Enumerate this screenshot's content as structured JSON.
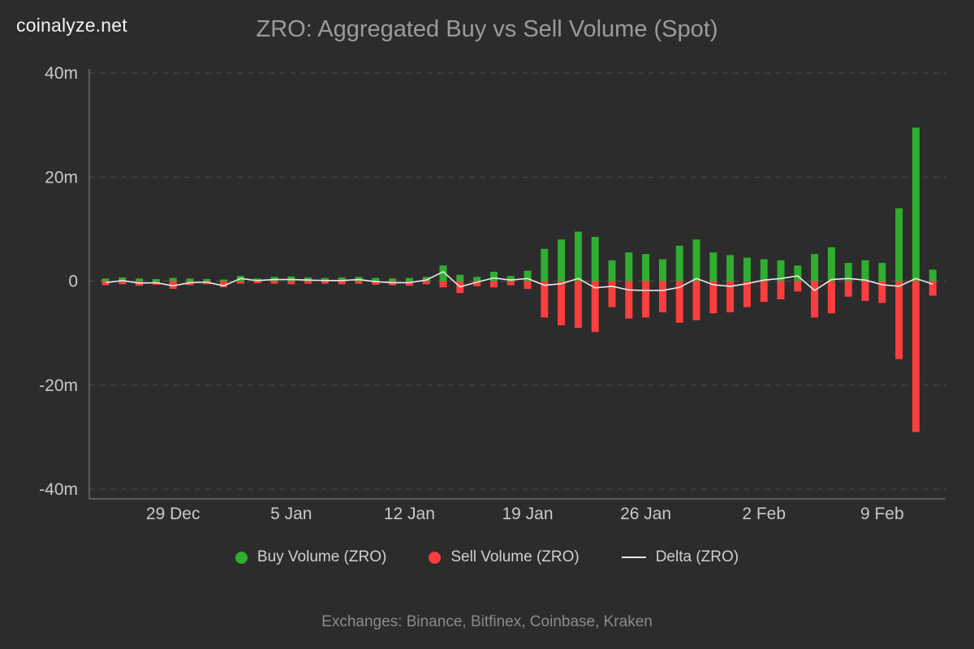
{
  "header": {
    "logo": "coinalyze.net",
    "title": "ZRO: Aggregated Buy vs Sell Volume (Spot)"
  },
  "legend": [
    {
      "label": "Buy Volume (ZRO)",
      "color": "#2fae2f",
      "type": "dot"
    },
    {
      "label": "Sell Volume (ZRO)",
      "color": "#fb3e3e",
      "type": "dot"
    },
    {
      "label": "Delta (ZRO)",
      "color": "#e8e8e8",
      "type": "line"
    }
  ],
  "footer": {
    "text": "Exchanges: Binance, Bitfinex, Coinbase, Kraken"
  },
  "chart_data": {
    "type": "bar",
    "title": "ZRO: Aggregated Buy vs Sell Volume (Spot)",
    "unit": "millions",
    "ylim": [
      -40,
      40
    ],
    "grid": "dashed-horizontal",
    "legend_position": "bottom",
    "y_ticks": [
      {
        "value": 40,
        "label": "40m"
      },
      {
        "value": 20,
        "label": "20m"
      },
      {
        "value": 0,
        "label": "0"
      },
      {
        "value": -20,
        "label": "-20m"
      },
      {
        "value": -40,
        "label": "-40m"
      }
    ],
    "x_ticks": [
      {
        "index": 4,
        "label": "29 Dec"
      },
      {
        "index": 11,
        "label": "5 Jan"
      },
      {
        "index": 18,
        "label": "12 Jan"
      },
      {
        "index": 25,
        "label": "19 Jan"
      },
      {
        "index": 32,
        "label": "26 Jan"
      },
      {
        "index": 39,
        "label": "2 Feb"
      },
      {
        "index": 46,
        "label": "9 Feb"
      }
    ],
    "categories": [
      "25 Dec",
      "26 Dec",
      "27 Dec",
      "28 Dec",
      "29 Dec",
      "30 Dec",
      "31 Dec",
      "1 Jan",
      "2 Jan",
      "3 Jan",
      "4 Jan",
      "5 Jan",
      "6 Jan",
      "7 Jan",
      "8 Jan",
      "9 Jan",
      "10 Jan",
      "11 Jan",
      "12 Jan",
      "13 Jan",
      "14 Jan",
      "15 Jan",
      "16 Jan",
      "17 Jan",
      "18 Jan",
      "19 Jan",
      "20 Jan",
      "21 Jan",
      "22 Jan",
      "23 Jan",
      "24 Jan",
      "25 Jan",
      "26 Jan",
      "27 Jan",
      "28 Jan",
      "29 Jan",
      "30 Jan",
      "31 Jan",
      "1 Feb",
      "2 Feb",
      "3 Feb",
      "4 Feb",
      "5 Feb",
      "6 Feb",
      "7 Feb",
      "8 Feb",
      "9 Feb",
      "10 Feb",
      "11 Feb",
      "12 Feb"
    ],
    "series": [
      {
        "name": "Buy Volume (ZRO)",
        "color": "#2fae2f",
        "render": "bar",
        "values": [
          0.5,
          0.7,
          0.5,
          0.4,
          0.6,
          0.5,
          0.4,
          0.3,
          1.0,
          0.5,
          0.8,
          0.9,
          0.7,
          0.6,
          0.7,
          0.8,
          0.6,
          0.5,
          0.6,
          0.8,
          3.0,
          1.2,
          0.8,
          1.8,
          1.0,
          2.0,
          6.2,
          8.0,
          9.5,
          8.5,
          4.0,
          5.5,
          5.2,
          4.2,
          6.8,
          8.0,
          5.5,
          5.0,
          4.5,
          4.2,
          4.0,
          3.0,
          5.2,
          6.5,
          3.5,
          4.0,
          3.5,
          14.0,
          29.5,
          2.2
        ]
      },
      {
        "name": "Sell Volume (ZRO)",
        "color": "#fb3e3e",
        "render": "bar",
        "values": [
          -0.8,
          -0.6,
          -0.9,
          -0.7,
          -1.5,
          -0.8,
          -0.6,
          -1.2,
          -0.5,
          -0.4,
          -0.5,
          -0.6,
          -0.5,
          -0.5,
          -0.6,
          -0.5,
          -0.7,
          -0.8,
          -0.9,
          -0.6,
          -1.2,
          -2.3,
          -1.0,
          -1.2,
          -0.8,
          -1.5,
          -7.0,
          -8.5,
          -9.0,
          -9.8,
          -5.0,
          -7.2,
          -7.0,
          -6.0,
          -8.0,
          -7.5,
          -6.2,
          -6.0,
          -5.0,
          -4.0,
          -3.5,
          -2.0,
          -7.0,
          -6.2,
          -3.0,
          -3.8,
          -4.2,
          -15.0,
          -29.0,
          -2.8
        ]
      },
      {
        "name": "Delta (ZRO)",
        "color": "#e8e8e8",
        "render": "line",
        "values": [
          -0.3,
          0.1,
          -0.4,
          -0.3,
          -0.9,
          -0.3,
          -0.2,
          -0.9,
          0.5,
          0.1,
          0.3,
          0.3,
          0.2,
          0.1,
          0.1,
          0.3,
          -0.1,
          -0.3,
          -0.3,
          0.2,
          1.8,
          -1.1,
          -0.2,
          0.6,
          0.2,
          0.5,
          -0.8,
          -0.5,
          0.5,
          -1.3,
          -1.0,
          -1.7,
          -1.8,
          -1.8,
          -1.2,
          0.5,
          -0.7,
          -1.0,
          -0.5,
          0.2,
          0.5,
          1.0,
          -1.8,
          0.3,
          0.5,
          0.2,
          -0.7,
          -1.0,
          0.5,
          -0.6
        ]
      }
    ]
  }
}
